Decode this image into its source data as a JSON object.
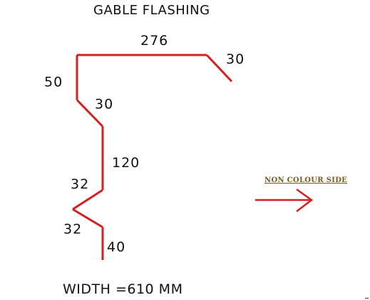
{
  "title": "GABLE FLASHING",
  "profile": {
    "color": "#d42020",
    "segments": [
      {
        "label": "276"
      },
      {
        "label": "30"
      },
      {
        "label": "50"
      },
      {
        "label": "30"
      },
      {
        "label": "120"
      },
      {
        "label": "32"
      },
      {
        "label": "32"
      },
      {
        "label": "40"
      }
    ]
  },
  "side_indicator": {
    "label": "NON COLOUR SIDE",
    "label_color": "#7a5a16",
    "arrow_color": "#d42020",
    "arrow_icon": "arrow-right-icon"
  },
  "width_text": "WIDTH =610 MM"
}
